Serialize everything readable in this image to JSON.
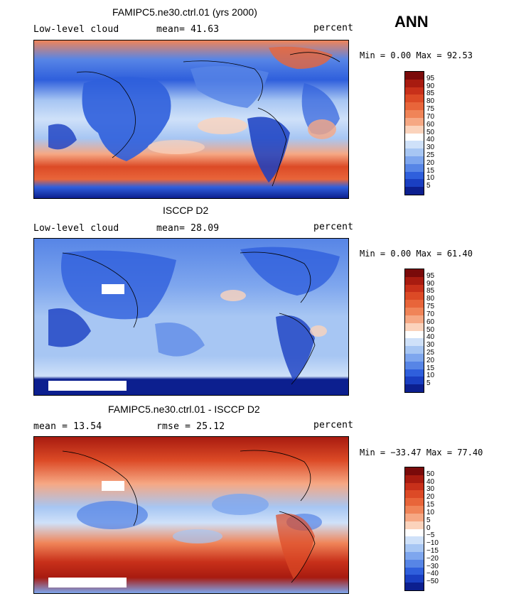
{
  "season": "ANN",
  "panels": [
    {
      "title": "FAMIPC5.ne30.ctrl.01 (yrs 2000)",
      "left": "Low-level cloud",
      "middle": "mean=  41.63",
      "right": "percent",
      "stats": "Min =    0.00 Max =  92.53",
      "scale": "abs",
      "labels": [
        "95",
        "90",
        "85",
        "80",
        "75",
        "70",
        "60",
        "50",
        "40",
        "30",
        "25",
        "20",
        "15",
        "10",
        "5"
      ]
    },
    {
      "title": "ISCCP D2",
      "left": "Low-level cloud",
      "middle": "mean=  28.09",
      "right": "percent",
      "stats": "Min =    0.00 Max =  61.40",
      "scale": "abs",
      "labels": [
        "95",
        "90",
        "85",
        "80",
        "75",
        "70",
        "60",
        "50",
        "40",
        "30",
        "25",
        "20",
        "15",
        "10",
        "5"
      ]
    },
    {
      "title": "FAMIPC5.ne30.ctrl.01 - ISCCP D2",
      "left": "mean =  13.54",
      "middle": "rmse =  25.12",
      "right": "percent",
      "stats": "Min = −33.47 Max =  77.40",
      "scale": "diff",
      "labels": [
        "50",
        "40",
        "30",
        "20",
        "15",
        "10",
        "5",
        "0",
        "−5",
        "−10",
        "−15",
        "−20",
        "−30",
        "−40",
        "−50"
      ]
    }
  ],
  "colors": {
    "palette": [
      "#7a0a0a",
      "#a81b10",
      "#c8301a",
      "#dc4a26",
      "#e8653a",
      "#f08458",
      "#f6a884",
      "#fbd3bc",
      "#ffffff",
      "#cfe1f9",
      "#a7c6f3",
      "#7ea6ee",
      "#5785e6",
      "#2f5fdc",
      "#1a3fc2",
      "#0c1f8f"
    ]
  }
}
